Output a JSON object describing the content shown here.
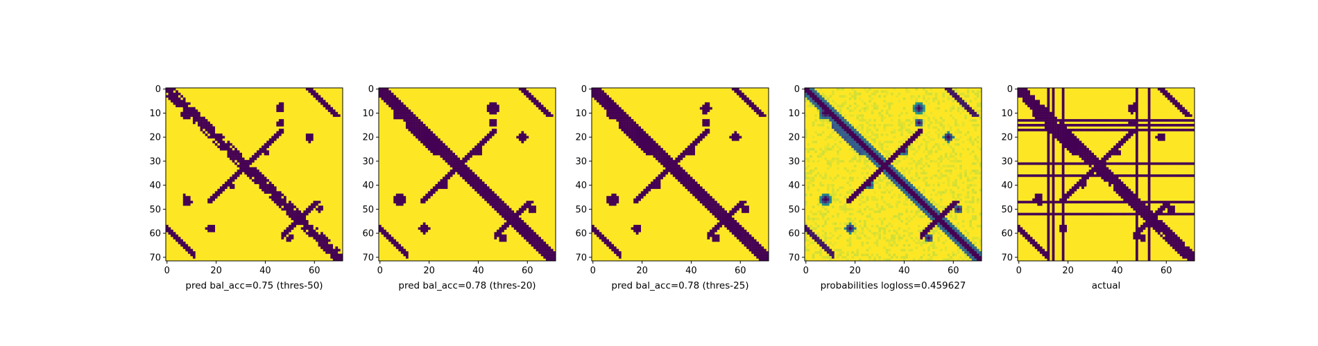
{
  "colors": {
    "background": "#440154",
    "foreground": "#fde725",
    "colormap": "viridis"
  },
  "chart_data": [
    {
      "type": "heatmap",
      "title": "",
      "xlabel": "pred bal_acc=0.75 (thres-50)",
      "ylabel": "",
      "size": 72,
      "xticks": [
        0,
        20,
        40,
        60
      ],
      "yticks": [
        0,
        10,
        20,
        30,
        40,
        50,
        60,
        70
      ],
      "value_range": [
        0,
        1
      ],
      "binary": true,
      "description": "binary contact map; dark main diagonal and anti-diagonal, dark blobs near (10,8), (46,8), (58,18), (14,46), (20,58), (54,54)"
    },
    {
      "type": "heatmap",
      "title": "",
      "xlabel": "pred bal_acc=0.78 (thres-20)",
      "ylabel": "",
      "size": 72,
      "xticks": [
        0,
        20,
        40,
        60
      ],
      "yticks": [
        0,
        10,
        20,
        30,
        40,
        50,
        60,
        70
      ],
      "value_range": [
        0,
        1
      ],
      "binary": true
    },
    {
      "type": "heatmap",
      "title": "",
      "xlabel": "pred bal_acc=0.78 (thres-25)",
      "ylabel": "",
      "size": 72,
      "xticks": [
        0,
        20,
        40,
        60
      ],
      "yticks": [
        0,
        10,
        20,
        30,
        40,
        50,
        60,
        70
      ],
      "value_range": [
        0,
        1
      ],
      "binary": true
    },
    {
      "type": "heatmap",
      "title": "",
      "xlabel": "probabilities logloss=0.459627",
      "ylabel": "",
      "size": 72,
      "xticks": [
        0,
        20,
        40,
        60
      ],
      "yticks": [
        0,
        10,
        20,
        30,
        40,
        50,
        60,
        70
      ],
      "value_range": [
        0,
        1
      ],
      "binary": false
    },
    {
      "type": "heatmap",
      "title": "",
      "xlabel": "actual",
      "ylabel": "",
      "size": 72,
      "xticks": [
        0,
        20,
        40,
        60
      ],
      "yticks": [
        0,
        10,
        20,
        30,
        40,
        50,
        60,
        70
      ],
      "value_range": [
        0,
        1
      ],
      "binary": true,
      "masked_rows": [
        13,
        15,
        17,
        31,
        36,
        47,
        52
      ],
      "masked_cols": [
        12,
        14,
        18,
        48,
        53
      ]
    }
  ]
}
